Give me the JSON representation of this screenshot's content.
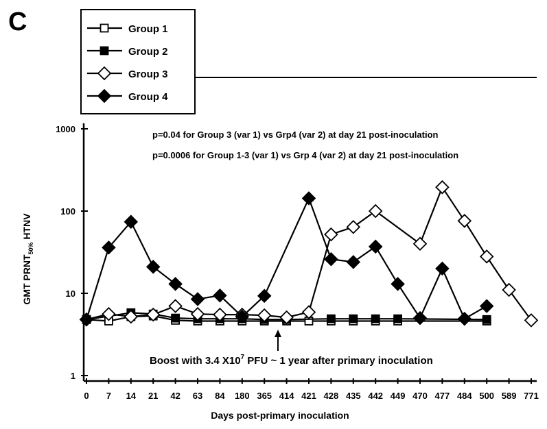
{
  "chart_data": {
    "type": "line",
    "panel_label": "C",
    "xlabel": "Days post-primary inoculation",
    "ylabel": "GMT PRNT 50% HTNV",
    "ylabel_main": "GMT PRNT",
    "ylabel_sub": "50%",
    "ylabel_tail": " HTNV",
    "y_scale": "log",
    "ylim": [
      1,
      1000
    ],
    "y_ticks": [
      "1",
      "10",
      "100",
      "1000"
    ],
    "y_tick_values": [
      1,
      10,
      100,
      1000
    ],
    "categories": [
      "0",
      "7",
      "14",
      "21",
      "42",
      "63",
      "84",
      "180",
      "365",
      "414",
      "421",
      "428",
      "435",
      "442",
      "449",
      "470",
      "477",
      "484",
      "500",
      "589",
      "771"
    ],
    "series": [
      {
        "name": "Group 1",
        "marker": "square-open",
        "values": [
          4.8,
          4.6,
          5.2,
          5.3,
          4.7,
          4.6,
          4.6,
          4.6,
          4.6,
          4.6,
          4.6,
          4.6,
          4.6,
          4.6,
          4.6,
          null,
          null,
          null,
          4.6,
          null,
          null
        ]
      },
      {
        "name": "Group 2",
        "marker": "square-filled",
        "values": [
          4.8,
          null,
          5.8,
          5.6,
          5.0,
          4.9,
          4.9,
          4.9,
          4.8,
          4.8,
          null,
          4.9,
          4.9,
          4.9,
          4.9,
          null,
          null,
          null,
          4.8,
          null,
          null
        ]
      },
      {
        "name": "Group 3",
        "marker": "diamond-open",
        "values": [
          4.8,
          5.6,
          5.2,
          5.5,
          7,
          5.6,
          5.5,
          5.5,
          5.4,
          5.1,
          5.9,
          52,
          64,
          100,
          null,
          40,
          195,
          76,
          28,
          11,
          4.7
        ]
      },
      {
        "name": "Group 4",
        "marker": "diamond-filled",
        "values": [
          4.8,
          36,
          74,
          21,
          13,
          8.5,
          9.4,
          5.2,
          9.3,
          null,
          143,
          26,
          24,
          37,
          13,
          5,
          20,
          4.9,
          7,
          null,
          null
        ]
      }
    ],
    "annotations": [
      "p=0.04 for Group 3 (var 1) vs Grp4 (var 2) at day 21 post-inoculation",
      "p=0.0006 for Group 1-3 (var 1) vs Grp 4 (var 2) at day 21 post-inoculation"
    ],
    "boost_note": "Boost with 3.4 X10",
    "boost_exp": "7",
    "boost_note_tail": " PFU ~ 1 year after primary inoculation",
    "boost_at": "414",
    "legend_position": "top-left",
    "grid": false
  }
}
